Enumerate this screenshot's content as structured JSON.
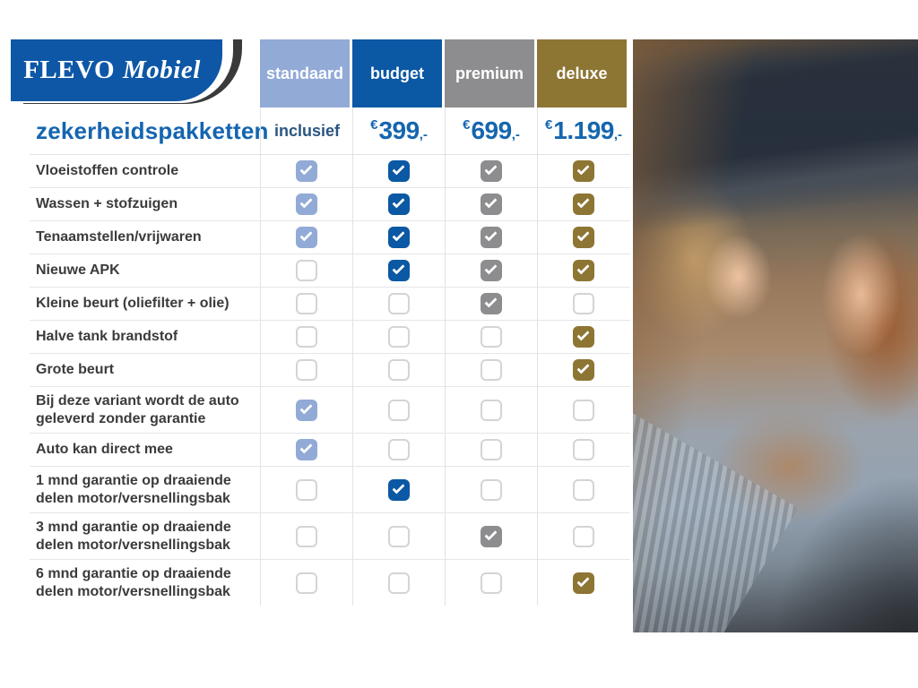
{
  "brand": {
    "primary": "FLEVO",
    "secondary": "Mobiel"
  },
  "title": "zekerheidspakketten",
  "icons": {
    "check": "✓"
  },
  "colors": {
    "logo_blue": "#0e57a6",
    "logo_swoosh": "#3a3a3c",
    "title_blue": "#1465af",
    "price_blue": "#1566ae",
    "inclusief_text": "#2a5580",
    "label_text": "#3b3b3b",
    "grid_line": "#e2e2e2"
  },
  "packages": [
    {
      "id": "standaard",
      "label": "standaard",
      "color": "#92aad6",
      "price": {
        "prefix": "",
        "amount": "inclusief",
        "suffix": ""
      }
    },
    {
      "id": "budget",
      "label": "budget",
      "color": "#0b58a4",
      "price": {
        "prefix": "€",
        "amount": "399",
        "suffix": ",-"
      }
    },
    {
      "id": "premium",
      "label": "premium",
      "color": "#8d8d8f",
      "price": {
        "prefix": "€",
        "amount": "699",
        "suffix": ",-"
      }
    },
    {
      "id": "deluxe",
      "label": "deluxe",
      "color": "#8d7534",
      "price": {
        "prefix": "€",
        "amount": "1.199",
        "suffix": ",-"
      }
    }
  ],
  "features": [
    {
      "label": "Vloeistoffen controle",
      "included": [
        true,
        true,
        true,
        true
      ]
    },
    {
      "label": "Wassen + stofzuigen",
      "included": [
        true,
        true,
        true,
        true
      ]
    },
    {
      "label": "Tenaamstellen/vrijwaren",
      "included": [
        true,
        true,
        true,
        true
      ]
    },
    {
      "label": "Nieuwe APK",
      "included": [
        false,
        true,
        true,
        true
      ]
    },
    {
      "label": "Kleine beurt (oliefilter + olie)",
      "included": [
        false,
        false,
        true,
        false
      ]
    },
    {
      "label": "Halve tank brandstof",
      "included": [
        false,
        false,
        false,
        true
      ]
    },
    {
      "label": "Grote beurt",
      "included": [
        false,
        false,
        false,
        true
      ]
    },
    {
      "label": "Bij deze variant wordt de auto geleverd zonder garantie",
      "included": [
        true,
        false,
        false,
        false
      ]
    },
    {
      "label": "Auto kan direct mee",
      "included": [
        true,
        false,
        false,
        false
      ]
    },
    {
      "label": "1 mnd garantie op draaiende delen motor/versnellingsbak",
      "included": [
        false,
        true,
        false,
        false
      ]
    },
    {
      "label": "3 mnd garantie op draaiende delen motor/versnellingsbak",
      "included": [
        false,
        false,
        true,
        false
      ]
    },
    {
      "label": "6 mnd garantie op draaiende delen motor/versnellingsbak",
      "included": [
        false,
        false,
        false,
        true
      ]
    }
  ]
}
